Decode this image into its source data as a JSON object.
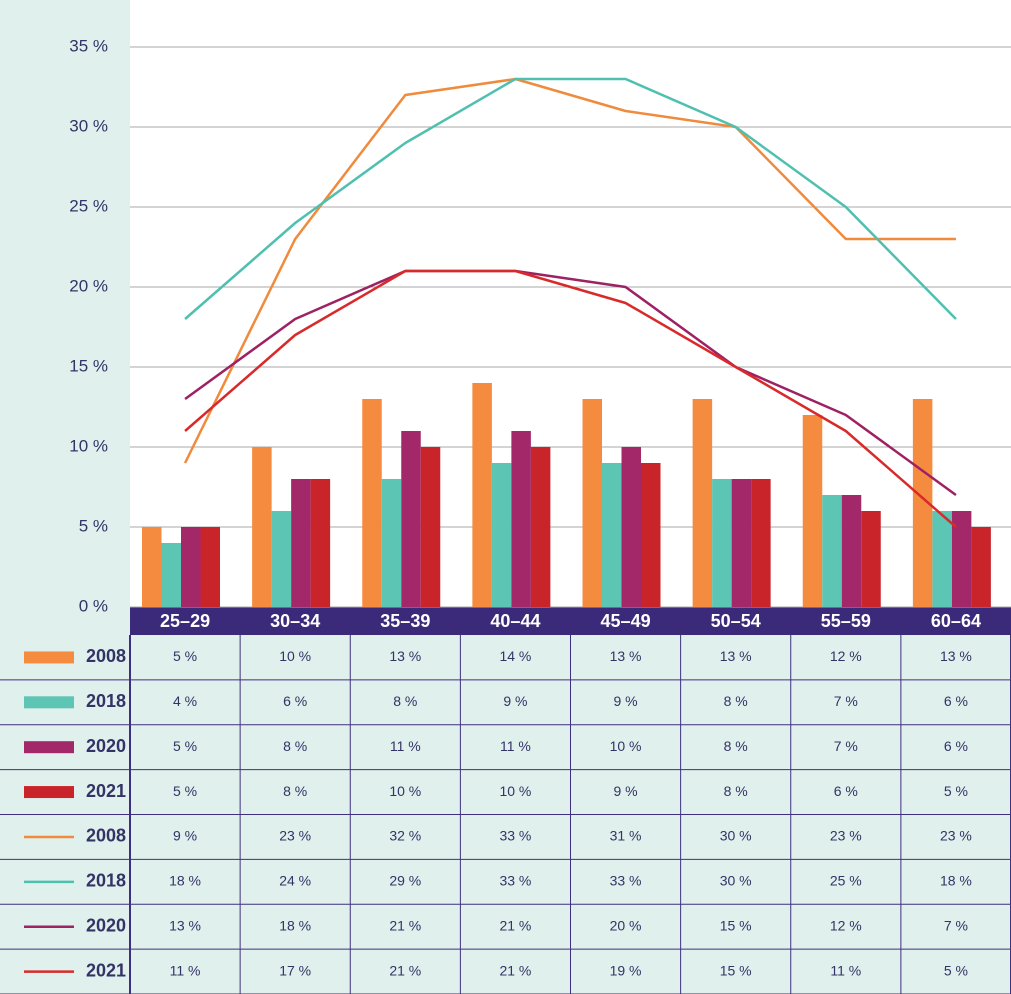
{
  "chart_data": {
    "type": "combo",
    "categories": [
      "25–29",
      "30–34",
      "35–39",
      "40–44",
      "45–49",
      "50–54",
      "55–59",
      "60–64"
    ],
    "ylim": [
      0,
      35
    ],
    "yticks": [
      {
        "value": 0,
        "label": "0 %"
      },
      {
        "value": 5,
        "label": "5 %"
      },
      {
        "value": 10,
        "label": "10 %"
      },
      {
        "value": 15,
        "label": "15 %"
      },
      {
        "value": 20,
        "label": "20 %"
      },
      {
        "value": 25,
        "label": "25 %"
      },
      {
        "value": 30,
        "label": "30 %"
      },
      {
        "value": 35,
        "label": "35 %"
      }
    ],
    "grid": true,
    "series": [
      {
        "name": "2008",
        "type": "bar",
        "color": "#f58b3f",
        "values": [
          5,
          10,
          13,
          14,
          13,
          13,
          12,
          13
        ],
        "value_labels": [
          "5 %",
          "10 %",
          "13 %",
          "14 %",
          "13 %",
          "13 %",
          "12 %",
          "13 %"
        ]
      },
      {
        "name": "2018",
        "type": "bar",
        "color": "#5cc5b3",
        "values": [
          4,
          6,
          8,
          9,
          9,
          8,
          7,
          6
        ],
        "value_labels": [
          "4 %",
          "6 %",
          "8 %",
          "9 %",
          "9 %",
          "8 %",
          "7 %",
          "6 %"
        ]
      },
      {
        "name": "2020",
        "type": "bar",
        "color": "#a3286a",
        "values": [
          5,
          8,
          11,
          11,
          10,
          8,
          7,
          6
        ],
        "value_labels": [
          "5 %",
          "8 %",
          "11 %",
          "11 %",
          "10 %",
          "8 %",
          "7 %",
          "6 %"
        ]
      },
      {
        "name": "2021",
        "type": "bar",
        "color": "#c8242a",
        "values": [
          5,
          8,
          10,
          10,
          9,
          8,
          6,
          5
        ],
        "value_labels": [
          "5 %",
          "8 %",
          "10 %",
          "10 %",
          "9 %",
          "8 %",
          "6 %",
          "5 %"
        ]
      },
      {
        "name": "2008",
        "type": "line",
        "color": "#f08a3c",
        "values": [
          9,
          23,
          32,
          33,
          31,
          30,
          23,
          23
        ],
        "value_labels": [
          "9 %",
          "23 %",
          "32 %",
          "33 %",
          "31 %",
          "30 %",
          "23 %",
          "23 %"
        ]
      },
      {
        "name": "2018",
        "type": "line",
        "color": "#4fc0b0",
        "values": [
          18,
          24,
          29,
          33,
          33,
          30,
          25,
          18
        ],
        "value_labels": [
          "18 %",
          "24 %",
          "29 %",
          "33 %",
          "33 %",
          "30 %",
          "25 %",
          "18 %"
        ]
      },
      {
        "name": "2020",
        "type": "line",
        "color": "#9d2163",
        "values": [
          13,
          18,
          21,
          21,
          20,
          15,
          12,
          7
        ],
        "value_labels": [
          "13 %",
          "18 %",
          "21 %",
          "21 %",
          "20 %",
          "15 %",
          "12 %",
          "7 %"
        ]
      },
      {
        "name": "2021",
        "type": "line",
        "color": "#d82a2a",
        "values": [
          11,
          17,
          21,
          21,
          19,
          15,
          11,
          5
        ],
        "value_labels": [
          "11 %",
          "17 %",
          "21 %",
          "21 %",
          "19 %",
          "15 %",
          "11 %",
          "5 %"
        ]
      }
    ]
  }
}
